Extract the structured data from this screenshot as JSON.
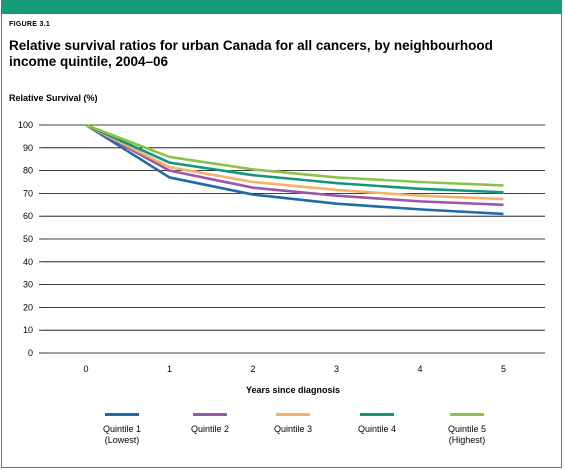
{
  "figure": {
    "label": "FIGURE 3.1",
    "title": "Relative survival ratios for urban Canada for all cancers, by neighbourhood income quintile, 2004–06"
  },
  "colors": {
    "frame": "#169c78"
  },
  "chart_data": {
    "type": "line",
    "title": "Relative survival ratios for urban Canada for all cancers, by neighbourhood income quintile, 2004–06",
    "ylabel": "Relative Survival (%)",
    "xlabel": "Years since diagnosis",
    "x": [
      0,
      1,
      2,
      3,
      4,
      5
    ],
    "x_ticks": [
      "0",
      "1",
      "2",
      "3",
      "4",
      "5"
    ],
    "y_ticks": [
      "0",
      "10",
      "20",
      "30",
      "40",
      "50",
      "60",
      "70",
      "80",
      "90",
      "100"
    ],
    "ylim": [
      0,
      100
    ],
    "grid": true,
    "legend_position": "bottom",
    "series": [
      {
        "name": "Quintile 1\n(Lowest)",
        "color": "#1f6aa8",
        "values": [
          100,
          77,
          69.5,
          65.5,
          63,
          61
        ]
      },
      {
        "name": "Quintile 2",
        "color": "#9b57a8",
        "values": [
          100,
          80,
          72.5,
          69,
          66.5,
          65
        ]
      },
      {
        "name": "Quintile 3",
        "color": "#f4b26b",
        "values": [
          100,
          81.5,
          75,
          71.5,
          69,
          67.5
        ]
      },
      {
        "name": "Quintile 4",
        "color": "#12977a",
        "values": [
          100,
          83.5,
          78,
          74.5,
          72,
          70.5
        ]
      },
      {
        "name": "Quintile 5\n(Highest)",
        "color": "#8bc34a",
        "values": [
          100,
          86,
          80.5,
          77,
          75,
          73.5
        ]
      }
    ]
  }
}
